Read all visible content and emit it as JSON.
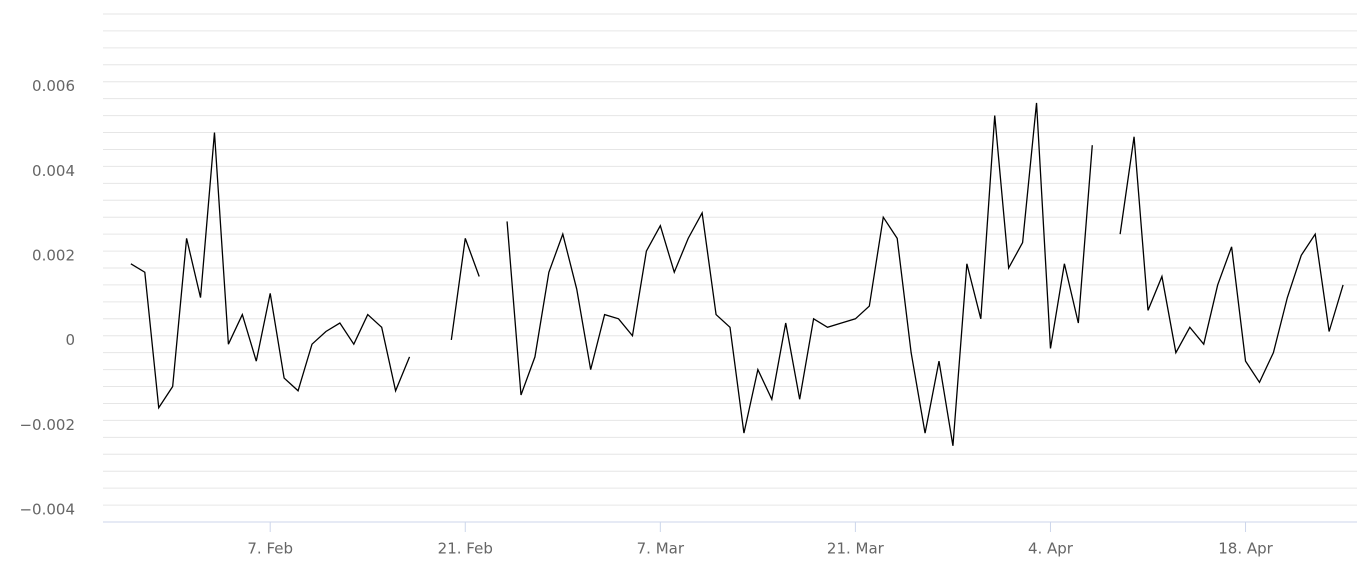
{
  "chart_data": {
    "type": "line",
    "x": [
      "01-28",
      "01-29",
      "01-30",
      "01-31",
      "02-01",
      "02-02",
      "02-03",
      "02-04",
      "02-05",
      "02-06",
      "02-07",
      "02-08",
      "02-09",
      "02-10",
      "02-11",
      "02-12",
      "02-13",
      "02-14",
      "02-15",
      "02-16",
      "02-17",
      "02-18",
      "02-19",
      "02-20",
      "02-21",
      "02-22",
      "02-23",
      "02-24",
      "02-25",
      "02-26",
      "02-27",
      "02-28",
      "03-01",
      "03-02",
      "03-03",
      "03-04",
      "03-05",
      "03-06",
      "03-07",
      "03-08",
      "03-09",
      "03-10",
      "03-11",
      "03-12",
      "03-13",
      "03-14",
      "03-15",
      "03-16",
      "03-17",
      "03-18",
      "03-19",
      "03-20",
      "03-21",
      "03-22",
      "03-23",
      "03-24",
      "03-25",
      "03-26",
      "03-27",
      "03-28",
      "03-29",
      "03-30",
      "03-31",
      "04-01",
      "04-02",
      "04-03",
      "04-04",
      "04-05",
      "04-06",
      "04-07",
      "04-08",
      "04-09",
      "04-10",
      "04-11",
      "04-12",
      "04-13",
      "04-14",
      "04-15",
      "04-16",
      "04-17",
      "04-18",
      "04-19",
      "04-20",
      "04-21",
      "04-22",
      "04-23",
      "04-24",
      "04-25"
    ],
    "series": [
      {
        "color": "#000000",
        "values": [
          0.0017,
          0.0015,
          -0.0017,
          -0.0012,
          0.0023,
          0.0009,
          0.0048,
          -0.0002,
          0.0005,
          -0.0006,
          0.001,
          -0.001,
          -0.0013,
          -0.0002,
          0.0001,
          0.0003,
          -0.0002,
          0.0005,
          0.0002,
          -0.0013,
          -0.0005,
          null,
          null,
          -0.0001,
          0.0023,
          0.0014,
          null,
          0.0027,
          -0.0014,
          -0.0005,
          0.0015,
          0.0024,
          0.0011,
          -0.0008,
          0.0005,
          0.0004,
          0,
          0.002,
          0.0026,
          0.0015,
          0.0023,
          0.0029,
          0.0005,
          0.0002,
          -0.0023,
          -0.0008,
          -0.0015,
          0.0003,
          -0.0015,
          0.0004,
          0.0002,
          0.0003,
          0.0004,
          0.0007,
          0.0028,
          0.0023,
          -0.0004,
          -0.0023,
          -0.0006,
          -0.0026,
          0.0017,
          0.0004,
          0.0052,
          0.0016,
          0.0022,
          0.0055,
          -0.0003,
          0.0017,
          0.0003,
          0.0045,
          null,
          0.0024,
          0.0047,
          0.0006,
          0.0014,
          -0.0004,
          0.0002,
          -0.0002,
          0.0012,
          0.0021,
          -0.0006,
          -0.0011,
          -0.0004,
          0.0009,
          0.0019,
          0.0024,
          0.0001,
          0.0012
        ]
      }
    ],
    "xlim": [
      "01-26",
      "04-26"
    ],
    "xticks": [
      {
        "value": "02-07",
        "label": "7. Feb"
      },
      {
        "value": "02-21",
        "label": "21. Feb"
      },
      {
        "value": "03-07",
        "label": "7. Mar"
      },
      {
        "value": "03-21",
        "label": "21. Mar"
      },
      {
        "value": "04-04",
        "label": "4. Apr"
      },
      {
        "value": "04-18",
        "label": "18. Apr"
      }
    ],
    "ylim": [
      -0.0044,
      0.0076
    ],
    "yticks": [
      {
        "value": -0.004,
        "label": "−0.004"
      },
      {
        "value": -0.002,
        "label": "−0.002"
      },
      0,
      0.002,
      0.004,
      0.006
    ],
    "minor_yticks": [
      -0.0044,
      -0.004,
      -0.0036,
      -0.0032,
      -0.0028,
      -0.0024,
      -0.002,
      -0.0016,
      -0.0012,
      -0.0008,
      -0.0004,
      0,
      0.0004,
      0.0008,
      0.0012,
      0.0016,
      0.002,
      0.0024,
      0.0028,
      0.0032,
      0.0036,
      0.004,
      0.0044,
      0.0048,
      0.0052,
      0.0056,
      0.006,
      0.0064,
      0.0068,
      0.0072,
      0.0076
    ],
    "grid": true
  }
}
